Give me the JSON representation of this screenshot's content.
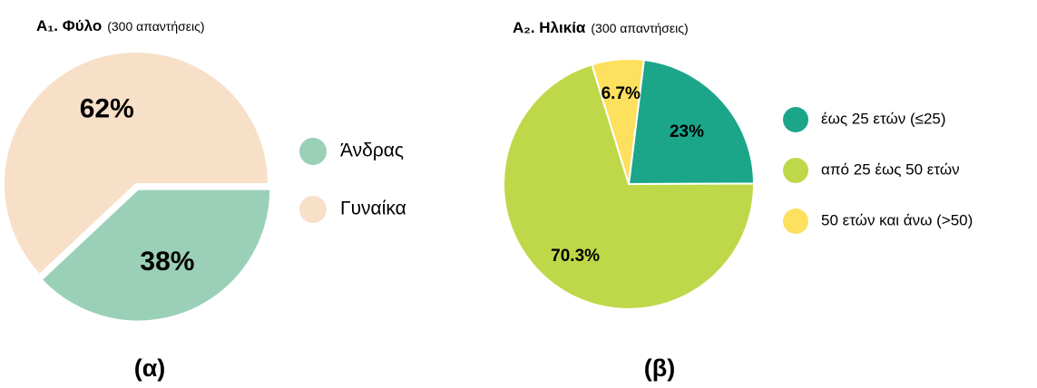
{
  "chart_data": [
    {
      "type": "pie",
      "title": "Α₁. Φύλο",
      "subtitle": "(300 απαντήσεις)",
      "caption": "(α)",
      "categories": [
        "Άνδρας",
        "Γυναίκα"
      ],
      "values": [
        38,
        62
      ],
      "value_labels": [
        "38%",
        "62%"
      ],
      "colors": [
        "#9bd0b8",
        "#f8dfc8"
      ],
      "explode": [
        true,
        false
      ]
    },
    {
      "type": "pie",
      "title": "Α₂. Ηλικία",
      "subtitle": "(300 απαντήσεις)",
      "caption": "(β)",
      "categories": [
        "έως 25 ετών (≤25)",
        "από 25 έως 50 ετών",
        "50 ετών και άνω (>50)"
      ],
      "values": [
        23,
        70.3,
        6.7
      ],
      "value_labels": [
        "23%",
        "70.3%",
        "6.7%"
      ],
      "colors": [
        "#1ba68a",
        "#bed84a",
        "#fde05e"
      ],
      "explode": [
        false,
        false,
        false
      ]
    }
  ]
}
